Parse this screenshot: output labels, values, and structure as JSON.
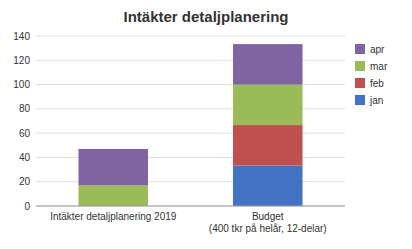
{
  "chart_data": {
    "type": "bar",
    "stacked": true,
    "title": "Intäkter detaljplanering",
    "categories": [
      "Intäkter detaljplanering 2019",
      "Budget\n(400 tkr på helår, 12-delar)"
    ],
    "series": [
      {
        "name": "jan",
        "color": "#4472C4",
        "values": [
          0,
          33.33
        ]
      },
      {
        "name": "feb",
        "color": "#C0504D",
        "values": [
          0,
          33.33
        ]
      },
      {
        "name": "mar",
        "color": "#9BBB59",
        "values": [
          17,
          33.33
        ]
      },
      {
        "name": "apr",
        "color": "#8064A2",
        "values": [
          30,
          33.34
        ]
      }
    ],
    "ylim": [
      0,
      140
    ],
    "yticks": [
      0,
      20,
      40,
      60,
      80,
      100,
      120,
      140
    ],
    "grid": true,
    "legend": "right"
  }
}
